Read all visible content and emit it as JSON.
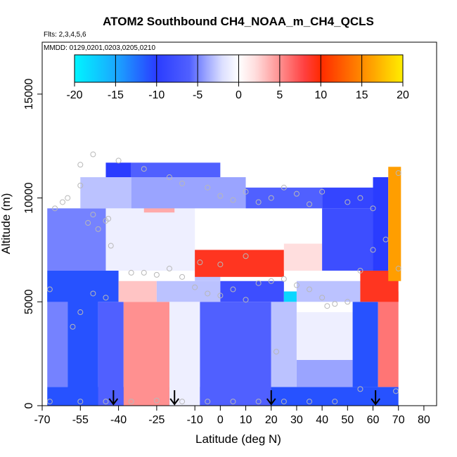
{
  "chart_data": {
    "type": "heatmap",
    "title": "ATOM2 Southbound CH4_NOAA_m_CH4_QCLS",
    "flights_note": "Flts: 2,3,4,5,6",
    "dates_note": "MMDD: 0129,0201,0203,0205,0210",
    "xlabel": "Latitude (deg N)",
    "ylabel": "Altitude (m)",
    "xlim": [
      -70,
      85
    ],
    "ylim": [
      0,
      17500
    ],
    "xticks": [
      -70,
      -55,
      -40,
      -25,
      -10,
      0,
      10,
      20,
      30,
      40,
      50,
      60,
      70,
      80
    ],
    "xtick_labels": [
      "-70",
      "-55",
      "-40",
      "-25",
      "-10",
      "0",
      "10",
      "20",
      "30",
      "40",
      "50",
      "60",
      "70",
      "80"
    ],
    "yticks": [
      0,
      5000,
      10000,
      15000
    ],
    "ytick_labels": [
      "0",
      "5000",
      "10000",
      "15000"
    ],
    "colorbar": {
      "min": -20,
      "max": 20,
      "ticks": [
        -20,
        -15,
        -10,
        -5,
        0,
        5,
        10,
        15,
        20
      ],
      "tick_labels": [
        "-20",
        "-15",
        "-10",
        "-5",
        "0",
        "5",
        "10",
        "15",
        "20"
      ],
      "stops": [
        {
          "v": -20,
          "color": "#00f5ff"
        },
        {
          "v": -15,
          "color": "#1aa8ff"
        },
        {
          "v": -10,
          "color": "#2a3cff"
        },
        {
          "v": -6,
          "color": "#5060ff"
        },
        {
          "v": -4,
          "color": "#9aa4ff"
        },
        {
          "v": -2,
          "color": "#dcdfff"
        },
        {
          "v": 0,
          "color": "#ffffff"
        },
        {
          "v": 2,
          "color": "#ffdede"
        },
        {
          "v": 5,
          "color": "#ff9090"
        },
        {
          "v": 8,
          "color": "#ff4040"
        },
        {
          "v": 10,
          "color": "#ff2a00"
        },
        {
          "v": 15,
          "color": "#ff8a00"
        },
        {
          "v": 20,
          "color": "#ffee00"
        }
      ]
    },
    "field_regions": [
      {
        "lat": [
          -68,
          70
        ],
        "alt": [
          0,
          900
        ],
        "value": -11
      },
      {
        "lat": [
          -68,
          -60
        ],
        "alt": [
          900,
          5500
        ],
        "value": -5
      },
      {
        "lat": [
          -60,
          -48
        ],
        "alt": [
          0,
          5500
        ],
        "value": -11
      },
      {
        "lat": [
          -48,
          -38
        ],
        "alt": [
          0,
          5000
        ],
        "value": -6
      },
      {
        "lat": [
          -38,
          -20
        ],
        "alt": [
          0,
          5000
        ],
        "value": 5
      },
      {
        "lat": [
          -20,
          -8
        ],
        "alt": [
          0,
          5000
        ],
        "value": -1
      },
      {
        "lat": [
          -8,
          20
        ],
        "alt": [
          0,
          5000
        ],
        "value": -6
      },
      {
        "lat": [
          20,
          30
        ],
        "alt": [
          900,
          5000
        ],
        "value": -3
      },
      {
        "lat": [
          30,
          52
        ],
        "alt": [
          900,
          4500
        ],
        "value": -1
      },
      {
        "lat": [
          30,
          52
        ],
        "alt": [
          900,
          2200
        ],
        "value": -4
      },
      {
        "lat": [
          52,
          62
        ],
        "alt": [
          900,
          5000
        ],
        "value": -11
      },
      {
        "lat": [
          62,
          70
        ],
        "alt": [
          900,
          5500
        ],
        "value": 6
      },
      {
        "lat": [
          -68,
          -40
        ],
        "alt": [
          5000,
          6500
        ],
        "value": -11
      },
      {
        "lat": [
          -40,
          -25
        ],
        "alt": [
          5000,
          6000
        ],
        "value": 3
      },
      {
        "lat": [
          -25,
          0
        ],
        "alt": [
          5000,
          6000
        ],
        "value": -3
      },
      {
        "lat": [
          0,
          25
        ],
        "alt": [
          5000,
          6000
        ],
        "value": -8
      },
      {
        "lat": [
          25,
          30
        ],
        "alt": [
          5000,
          5500
        ],
        "value": -18
      },
      {
        "lat": [
          30,
          55
        ],
        "alt": [
          5000,
          6000
        ],
        "value": -3
      },
      {
        "lat": [
          55,
          70
        ],
        "alt": [
          5000,
          6500
        ],
        "value": 9
      },
      {
        "lat": [
          -68,
          -45
        ],
        "alt": [
          6500,
          9500
        ],
        "value": -5
      },
      {
        "lat": [
          -45,
          -10
        ],
        "alt": [
          6500,
          9500
        ],
        "value": -1
      },
      {
        "lat": [
          -10,
          0
        ],
        "alt": [
          6000,
          7500
        ],
        "value": -3
      },
      {
        "lat": [
          -10,
          25
        ],
        "alt": [
          6200,
          7500
        ],
        "value": 9
      },
      {
        "lat": [
          25,
          40
        ],
        "alt": [
          6500,
          7800
        ],
        "value": 2
      },
      {
        "lat": [
          40,
          60
        ],
        "alt": [
          6500,
          9500
        ],
        "value": -8
      },
      {
        "lat": [
          60,
          66
        ],
        "alt": [
          6500,
          11000
        ],
        "value": -10
      },
      {
        "lat": [
          66,
          71
        ],
        "alt": [
          6000,
          11500
        ],
        "value": 16
      },
      {
        "lat": [
          -30,
          -18
        ],
        "alt": [
          9300,
          10000
        ],
        "value": 4
      },
      {
        "lat": [
          -55,
          -35
        ],
        "alt": [
          9500,
          11000
        ],
        "value": -3
      },
      {
        "lat": [
          -35,
          10
        ],
        "alt": [
          9500,
          11000
        ],
        "value": -4
      },
      {
        "lat": [
          10,
          40
        ],
        "alt": [
          9500,
          10500
        ],
        "value": -6
      },
      {
        "lat": [
          40,
          60
        ],
        "alt": [
          9500,
          10500
        ],
        "value": -9
      },
      {
        "lat": [
          -45,
          -35
        ],
        "alt": [
          11000,
          11700
        ],
        "value": -10
      },
      {
        "lat": [
          -35,
          0
        ],
        "alt": [
          11000,
          11700
        ],
        "value": -6
      }
    ],
    "arrows_latitude": [
      -42,
      -18,
      20,
      61
    ],
    "sample_points": [
      [
        -67,
        5600
      ],
      [
        -65,
        9500
      ],
      [
        -62,
        9800
      ],
      [
        -60,
        10000
      ],
      [
        -55,
        10600
      ],
      [
        -52,
        8800
      ],
      [
        -50,
        9200
      ],
      [
        -48,
        8500
      ],
      [
        -45,
        8900
      ],
      [
        -44,
        9000
      ],
      [
        -55,
        4500
      ],
      [
        -58,
        3800
      ],
      [
        -50,
        5400
      ],
      [
        -45,
        5200
      ],
      [
        -43,
        7700
      ],
      [
        -35,
        6400
      ],
      [
        -25,
        6300
      ],
      [
        -15,
        6200
      ],
      [
        -8,
        6900
      ],
      [
        -10,
        5700
      ],
      [
        -5,
        5400
      ],
      [
        0,
        5300
      ],
      [
        5,
        5600
      ],
      [
        10,
        5100
      ],
      [
        15,
        5900
      ],
      [
        20,
        6000
      ],
      [
        25,
        6100
      ],
      [
        30,
        5800
      ],
      [
        35,
        5600
      ],
      [
        40,
        5200
      ],
      [
        45,
        4900
      ],
      [
        50,
        5000
      ],
      [
        55,
        6500
      ],
      [
        60,
        7500
      ],
      [
        65,
        8000
      ],
      [
        70,
        6600
      ],
      [
        60,
        9500
      ],
      [
        55,
        10000
      ],
      [
        50,
        9800
      ],
      [
        40,
        10300
      ],
      [
        35,
        9700
      ],
      [
        30,
        10200
      ],
      [
        25,
        10500
      ],
      [
        20,
        10000
      ],
      [
        15,
        9800
      ],
      [
        10,
        10300
      ],
      [
        5,
        9900
      ],
      [
        0,
        10100
      ],
      [
        -5,
        10500
      ],
      [
        -15,
        10700
      ],
      [
        -20,
        11000
      ],
      [
        -30,
        11400
      ],
      [
        -40,
        11800
      ],
      [
        -50,
        12100
      ],
      [
        -55,
        11600
      ],
      [
        70,
        11200
      ],
      [
        -67,
        200
      ],
      [
        -55,
        200
      ],
      [
        -45,
        200
      ],
      [
        -35,
        200
      ],
      [
        -25,
        250
      ],
      [
        -15,
        200
      ],
      [
        -5,
        200
      ],
      [
        5,
        200
      ],
      [
        15,
        200
      ],
      [
        25,
        200
      ],
      [
        35,
        200
      ],
      [
        45,
        200
      ],
      [
        55,
        800
      ],
      [
        69,
        700
      ],
      [
        10,
        7200
      ],
      [
        0,
        6800
      ],
      [
        -20,
        6600
      ],
      [
        -30,
        6400
      ],
      [
        22,
        2600
      ],
      [
        42,
        4800
      ]
    ]
  }
}
